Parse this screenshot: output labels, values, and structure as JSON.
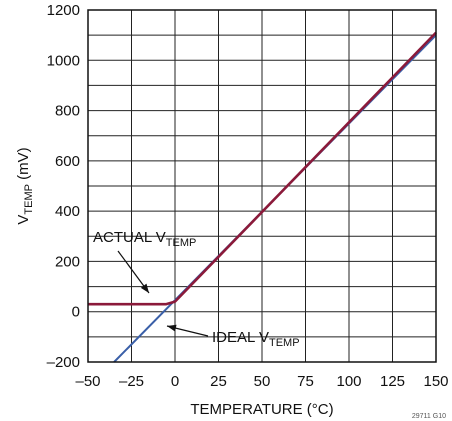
{
  "chart_data": {
    "type": "line",
    "xlabel": "TEMPERATURE (°C)",
    "ylabel": {
      "main": "V",
      "sub": "TEMP",
      "unit": " (mV)"
    },
    "xlim": [
      -50,
      150
    ],
    "ylim": [
      -200,
      1200
    ],
    "x_ticks": [
      -50,
      -25,
      0,
      25,
      50,
      75,
      100,
      125,
      150
    ],
    "x_tick_labels": [
      "–50",
      "–25",
      "0",
      "25",
      "50",
      "75",
      "100",
      "125",
      "150"
    ],
    "y_ticks": [
      -200,
      0,
      200,
      400,
      600,
      800,
      1000,
      1200
    ],
    "y_tick_labels": [
      "–200",
      "0",
      "200",
      "400",
      "600",
      "800",
      "1000",
      "1200"
    ],
    "grid": true,
    "series": [
      {
        "name": "IDEAL V TEMP",
        "color": "#3a5fa8",
        "x": [
          -35,
          150
        ],
        "y": [
          -200,
          1100
        ]
      },
      {
        "name": "ACTUAL V TEMP",
        "color": "#8b1a3a",
        "x": [
          -50,
          -5,
          0,
          150
        ],
        "y": [
          30,
          30,
          40,
          1110
        ]
      }
    ],
    "annotations": [
      {
        "main": "ACTUAL V",
        "sub": "TEMP",
        "series": 1
      },
      {
        "main": "IDEAL V",
        "sub": "TEMP",
        "series": 0
      }
    ],
    "figure_code": "29711 G10"
  }
}
